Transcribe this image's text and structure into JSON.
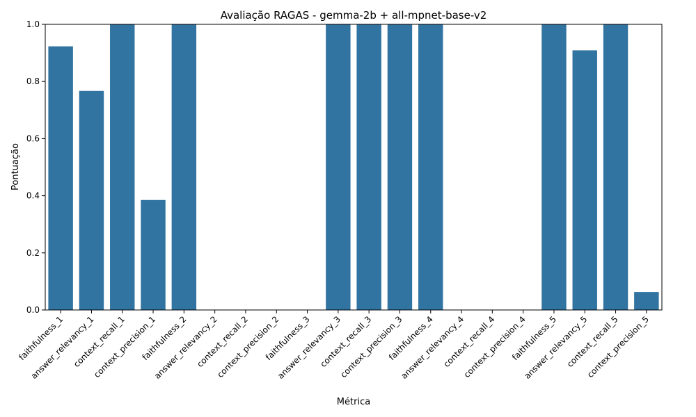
{
  "chart_data": {
    "type": "bar",
    "title": "Avaliação RAGAS - gemma-2b + all-mpnet-base-v2",
    "xlabel": "Métrica",
    "ylabel": "Pontuação",
    "ylim": [
      0,
      1.0
    ],
    "yticks": [
      "0.0",
      "0.2",
      "0.4",
      "0.6",
      "0.8",
      "1.0"
    ],
    "grid": false,
    "bar_color": "#3274a1",
    "categories": [
      "faithfulness_1",
      "answer_relevancy_1",
      "context_recall_1",
      "context_precision_1",
      "faithfulness_2",
      "answer_relevancy_2",
      "context_recall_2",
      "context_precision_2",
      "faithfulness_3",
      "answer_relevancy_3",
      "context_recall_3",
      "context_precision_3",
      "faithfulness_4",
      "answer_relevancy_4",
      "context_recall_4",
      "context_precision_4",
      "faithfulness_5",
      "answer_relevancy_5",
      "context_recall_5",
      "context_precision_5"
    ],
    "values": [
      0.923,
      0.767,
      1.0,
      0.385,
      1.0,
      0.0,
      0.0,
      0.0,
      0.0,
      1.0,
      1.0,
      1.0,
      1.0,
      0.0,
      0.0,
      0.0,
      1.0,
      0.909,
      1.0,
      0.063
    ]
  }
}
